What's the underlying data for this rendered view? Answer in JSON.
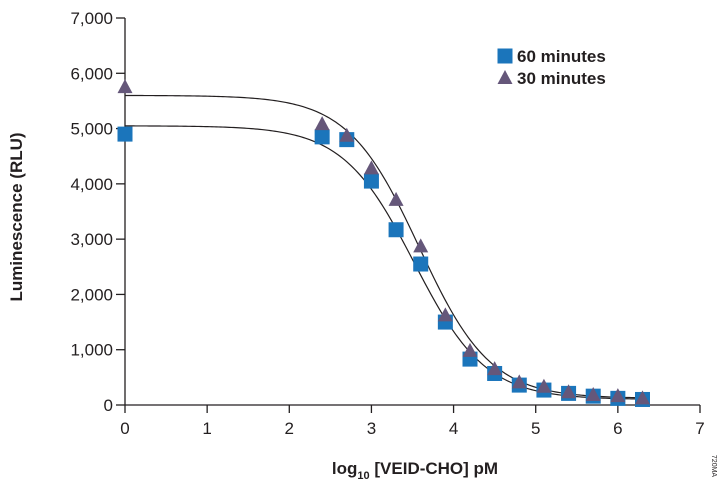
{
  "chart_data": {
    "type": "scatter",
    "xlabel_main": "log",
    "xlabel_sub": "10",
    "xlabel_rest": " [VEID-CHO] pM",
    "ylabel": "Luminescence (RLU)",
    "xlim": [
      0,
      7
    ],
    "ylim": [
      0,
      7000
    ],
    "x_ticks": [
      0,
      1,
      2,
      3,
      4,
      5,
      6,
      7
    ],
    "x_tick_labels": [
      "0",
      "1",
      "2",
      "3",
      "4",
      "5",
      "6",
      "7"
    ],
    "y_ticks": [
      0,
      1000,
      2000,
      3000,
      4000,
      5000,
      6000,
      7000
    ],
    "y_tick_labels": [
      "0",
      "1,000",
      "2,000",
      "3,000",
      "4,000",
      "5,000",
      "6,000",
      "7,000"
    ],
    "grid": false,
    "legend_position": "top-right",
    "series": [
      {
        "name": "60 minutes",
        "marker": "square",
        "color": "#1b75bb",
        "x": [
          0,
          2.4,
          2.7,
          3.0,
          3.3,
          3.6,
          3.9,
          4.2,
          4.5,
          4.8,
          5.1,
          5.4,
          5.7,
          6.0,
          6.3
        ],
        "y": [
          4900,
          4850,
          4800,
          4050,
          3170,
          2550,
          1500,
          830,
          570,
          360,
          270,
          210,
          160,
          120,
          100
        ],
        "fit": {
          "top": 5050,
          "bottom": 100,
          "log_ic50": 3.52,
          "hill": 1.0
        }
      },
      {
        "name": "30 minutes",
        "marker": "triangle",
        "color": "#65577a",
        "x": [
          0,
          2.4,
          2.7,
          3.0,
          3.3,
          3.6,
          3.9,
          4.2,
          4.5,
          4.8,
          5.1,
          5.4,
          5.7,
          6.0,
          6.3
        ],
        "y": [
          5750,
          5080,
          4870,
          4280,
          3710,
          2870,
          1620,
          980,
          650,
          410,
          330,
          230,
          180,
          160,
          120
        ],
        "fit": {
          "top": 5600,
          "bottom": 120,
          "log_ic50": 3.58,
          "hill": 1.0
        }
      }
    ],
    "corner_code": "720MA"
  }
}
